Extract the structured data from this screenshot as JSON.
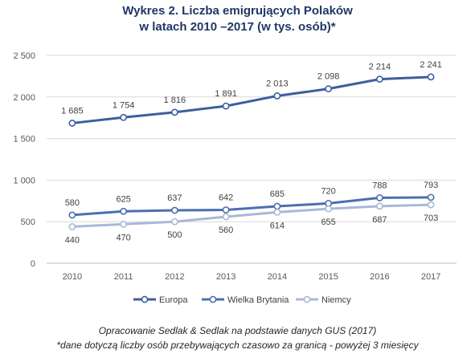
{
  "chart_data": {
    "type": "line",
    "title_line1": "Wykres 2. Liczba emigrujących Polaków",
    "title_line2": "w latach 2010 –2017 (w tys. osób)*",
    "xlabel": "",
    "ylabel": "",
    "categories": [
      "2010",
      "2011",
      "2012",
      "2013",
      "2014",
      "2015",
      "2016",
      "2017"
    ],
    "ylim": [
      0,
      2500
    ],
    "yticks": [
      0,
      500,
      1000,
      1500,
      2000,
      2500
    ],
    "ytick_labels": [
      "0",
      "500",
      "1 000",
      "1 500",
      "2 000",
      "2 500"
    ],
    "grid": true,
    "legend_position": "bottom",
    "series": [
      {
        "name": "Europa",
        "values": [
          1685,
          1754,
          1816,
          1891,
          2013,
          2098,
          2214,
          2241
        ],
        "labels": [
          "1 685",
          "1 754",
          "1 816",
          "1 891",
          "2 013",
          "2 098",
          "2 214",
          "2 241"
        ],
        "color": "#3c5f9e"
      },
      {
        "name": "Wielka Brytania",
        "values": [
          580,
          625,
          637,
          642,
          685,
          720,
          788,
          793
        ],
        "labels": [
          "580",
          "625",
          "637",
          "642",
          "685",
          "720",
          "788",
          "793"
        ],
        "color": "#4a6fb0"
      },
      {
        "name": "Niemcy",
        "values": [
          440,
          470,
          500,
          560,
          614,
          655,
          687,
          703
        ],
        "labels": [
          "440",
          "470",
          "500",
          "560",
          "614",
          "655",
          "687",
          "703"
        ],
        "color": "#a9b8d8"
      }
    ]
  },
  "footnote_line1": "Opracowanie Sedlak & Sedlak na podstawie danych GUS (2017)",
  "footnote_line2": "*dane dotyczą liczby osób przebywających czasowo za granicą - powyżej 3 miesięcy"
}
